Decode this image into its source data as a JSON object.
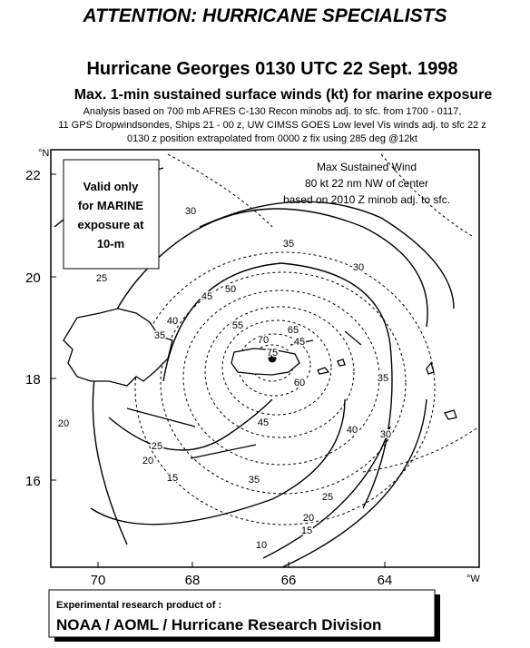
{
  "header": {
    "attention": "ATTENTION: HURRICANE SPECIALISTS",
    "title": "Hurricane Georges 0130 UTC 22 Sept. 1998",
    "subtitle": "Max. 1-min sustained surface winds (kt) for marine exposure",
    "analysis": [
      "Analysis based on 700 mb AFRES C-130 Recon minobs adj. to sfc. from 1700 - 0117,",
      "11 GPS Dropwindsondes, Ships 21 - 00 z, UW CIMSS GOES Low level Vis winds adj. to sfc  22 z",
      "0130 z position extrapolated from 0000 z  fix using 285 deg @12kt"
    ]
  },
  "map": {
    "lat_unit": "°N",
    "lat_labels": [
      "22",
      "20",
      "18",
      "16"
    ],
    "lon_unit": "°W",
    "lon_labels": [
      "70",
      "68",
      "66",
      "64"
    ],
    "valid_note": [
      "Valid only",
      "for MARINE",
      "exposure at",
      "10-m"
    ],
    "max_wind": [
      "Max Sustained Wind",
      "80 kt  22 nm NW of center",
      "based on 2010 Z minob adj. to sfc."
    ],
    "contour_labels": [
      "30",
      "35",
      "30",
      "45",
      "50",
      "40",
      "35",
      "25",
      "65",
      "70",
      "75",
      "55",
      "45",
      "60",
      "45",
      "40",
      "30",
      "35",
      "35",
      "25",
      "20",
      "15",
      "20",
      "25",
      "20",
      "15",
      "10"
    ]
  },
  "footer": {
    "line1": "Experimental research product of :",
    "line2": "NOAA / AOML / Hurricane Research Division"
  }
}
